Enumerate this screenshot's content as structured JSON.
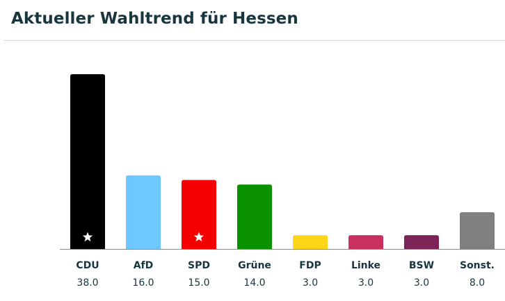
{
  "title": "Aktueller Wahltrend für Hessen",
  "chart_data": {
    "type": "bar",
    "categories": [
      "CDU",
      "AfD",
      "SPD",
      "Grüne",
      "FDP",
      "Linke",
      "BSW",
      "Sonst."
    ],
    "values": [
      38.0,
      16.0,
      15.0,
      14.0,
      3.0,
      3.0,
      3.0,
      8.0
    ],
    "value_labels": [
      "38.0",
      "16.0",
      "15.0",
      "14.0",
      "3.0",
      "3.0",
      "3.0",
      "8.0"
    ],
    "colors": [
      "#000000",
      "#6ec8ff",
      "#f50000",
      "#0a9100",
      "#ffd51a",
      "#c8305e",
      "#7c2358",
      "#808080"
    ],
    "starred": [
      "CDU",
      "SPD"
    ],
    "title": "Aktueller Wahltrend für Hessen",
    "xlabel": "",
    "ylabel": "",
    "ylim": [
      0,
      38
    ],
    "grid": false,
    "legend": "none"
  }
}
